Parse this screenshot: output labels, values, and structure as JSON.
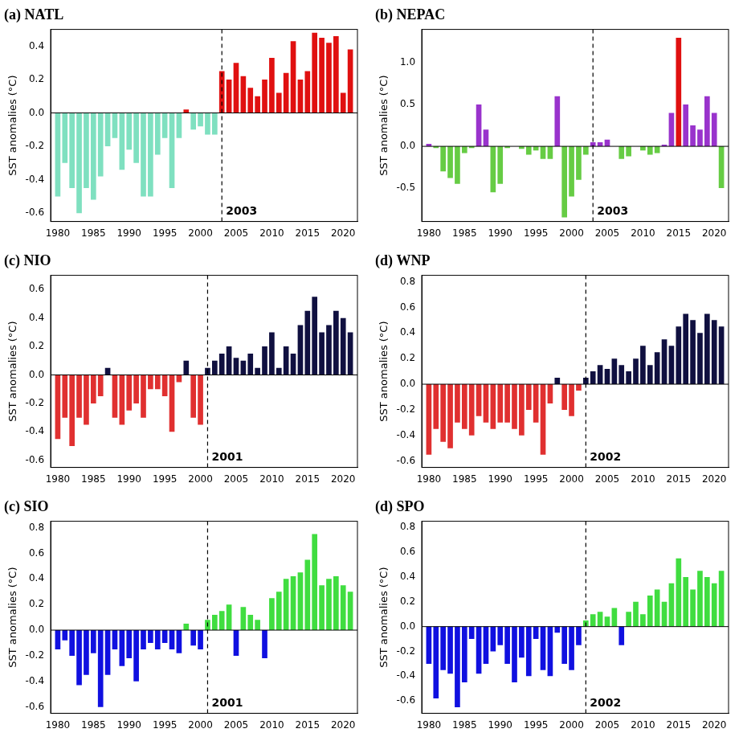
{
  "chart_data": [
    {
      "type": "bar",
      "title": "(a) NATL",
      "y_label": "SST anomalies (°C)",
      "x": [
        1980,
        1981,
        1982,
        1983,
        1984,
        1985,
        1986,
        1987,
        1988,
        1989,
        1990,
        1991,
        1992,
        1993,
        1994,
        1995,
        1996,
        1997,
        1998,
        1999,
        2000,
        2001,
        2002,
        2003,
        2004,
        2005,
        2006,
        2007,
        2008,
        2009,
        2010,
        2011,
        2012,
        2013,
        2014,
        2015,
        2016,
        2017,
        2018,
        2019,
        2020,
        2021
      ],
      "values": [
        -0.5,
        -0.3,
        -0.45,
        -0.6,
        -0.45,
        -0.52,
        -0.38,
        -0.2,
        -0.15,
        -0.34,
        -0.22,
        -0.3,
        -0.5,
        -0.5,
        -0.25,
        -0.15,
        -0.45,
        -0.15,
        0.02,
        -0.1,
        -0.08,
        -0.13,
        -0.13,
        0.25,
        0.2,
        0.3,
        0.22,
        0.15,
        0.1,
        0.2,
        0.33,
        0.12,
        0.24,
        0.43,
        0.2,
        0.25,
        0.48,
        0.45,
        0.42,
        0.46,
        0.12,
        0.38
      ],
      "colors": [
        "#7fe0c0",
        "#7fe0c0",
        "#7fe0c0",
        "#7fe0c0",
        "#7fe0c0",
        "#7fe0c0",
        "#7fe0c0",
        "#7fe0c0",
        "#7fe0c0",
        "#7fe0c0",
        "#7fe0c0",
        "#7fe0c0",
        "#7fe0c0",
        "#7fe0c0",
        "#7fe0c0",
        "#7fe0c0",
        "#7fe0c0",
        "#7fe0c0",
        "#e01010",
        "#7fe0c0",
        "#7fe0c0",
        "#7fe0c0",
        "#7fe0c0",
        "#e01010",
        "#e01010",
        "#e01010",
        "#e01010",
        "#e01010",
        "#e01010",
        "#e01010",
        "#e01010",
        "#e01010",
        "#e01010",
        "#e01010",
        "#e01010",
        "#e01010",
        "#e01010",
        "#e01010",
        "#e01010",
        "#e01010",
        "#e01010",
        "#e01010"
      ],
      "xlim": [
        1979,
        2022
      ],
      "xticks": [
        1980,
        1985,
        1990,
        1995,
        2000,
        2005,
        2010,
        2015,
        2020
      ],
      "ylim": [
        -0.65,
        0.5
      ],
      "yticks": [
        -0.6,
        -0.4,
        -0.2,
        {
          "value": 0,
          "label": "0.0"
        },
        0.2,
        0.4
      ],
      "annotations": [
        {
          "x": 2003,
          "text": "2003"
        }
      ],
      "grid": false
    },
    {
      "type": "bar",
      "title": "(b) NEPAC",
      "y_label": "SST anomalies (°C)",
      "x": [
        1980,
        1981,
        1982,
        1983,
        1984,
        1985,
        1986,
        1987,
        1988,
        1989,
        1990,
        1991,
        1992,
        1993,
        1994,
        1995,
        1996,
        1997,
        1998,
        1999,
        2000,
        2001,
        2002,
        2003,
        2004,
        2005,
        2006,
        2007,
        2008,
        2009,
        2010,
        2011,
        2012,
        2013,
        2014,
        2015,
        2016,
        2017,
        2018,
        2019,
        2020,
        2021
      ],
      "values": [
        0.03,
        -0.02,
        -0.3,
        -0.38,
        -0.45,
        -0.08,
        -0.02,
        0.5,
        0.2,
        -0.55,
        -0.45,
        -0.02,
        0.0,
        -0.03,
        -0.1,
        -0.05,
        -0.15,
        -0.15,
        0.6,
        -0.85,
        -0.6,
        -0.4,
        -0.1,
        0.05,
        0.05,
        0.08,
        0.0,
        -0.15,
        -0.12,
        0.0,
        -0.05,
        -0.1,
        -0.08,
        0.02,
        0.4,
        1.3,
        0.5,
        0.25,
        0.2,
        0.6,
        0.4,
        -0.5
      ],
      "colors": [
        "#9933cc",
        "#66cc44",
        "#66cc44",
        "#66cc44",
        "#66cc44",
        "#66cc44",
        "#66cc44",
        "#9933cc",
        "#9933cc",
        "#66cc44",
        "#66cc44",
        "#66cc44",
        "#66cc44",
        "#66cc44",
        "#66cc44",
        "#66cc44",
        "#66cc44",
        "#66cc44",
        "#9933cc",
        "#66cc44",
        "#66cc44",
        "#66cc44",
        "#66cc44",
        "#9933cc",
        "#9933cc",
        "#9933cc",
        "#66cc44",
        "#66cc44",
        "#66cc44",
        "#66cc44",
        "#66cc44",
        "#66cc44",
        "#66cc44",
        "#9933cc",
        "#9933cc",
        "#e01010",
        "#9933cc",
        "#9933cc",
        "#9933cc",
        "#9933cc",
        "#9933cc",
        "#66cc44"
      ],
      "xlim": [
        1979,
        2022
      ],
      "xticks": [
        1980,
        1985,
        1990,
        1995,
        2000,
        2005,
        2010,
        2015,
        2020
      ],
      "ylim": [
        -0.9,
        1.4
      ],
      "yticks": [
        -0.5,
        {
          "value": 0,
          "label": "0.0"
        },
        0.5,
        {
          "value": 1,
          "label": "1.0"
        }
      ],
      "annotations": [
        {
          "x": 2003,
          "text": "2003"
        }
      ],
      "grid": false
    },
    {
      "type": "bar",
      "title": "(c) NIO",
      "y_label": "SST anomalies (°C)",
      "x": [
        1980,
        1981,
        1982,
        1983,
        1984,
        1985,
        1986,
        1987,
        1988,
        1989,
        1990,
        1991,
        1992,
        1993,
        1994,
        1995,
        1996,
        1997,
        1998,
        1999,
        2000,
        2001,
        2002,
        2003,
        2004,
        2005,
        2006,
        2007,
        2008,
        2009,
        2010,
        2011,
        2012,
        2013,
        2014,
        2015,
        2016,
        2017,
        2018,
        2019,
        2020,
        2021
      ],
      "values": [
        -0.45,
        -0.3,
        -0.5,
        -0.3,
        -0.35,
        -0.2,
        -0.15,
        0.05,
        -0.3,
        -0.35,
        -0.25,
        -0.2,
        -0.3,
        -0.1,
        -0.1,
        -0.15,
        -0.4,
        -0.05,
        0.1,
        -0.3,
        -0.35,
        0.05,
        0.1,
        0.15,
        0.2,
        0.12,
        0.1,
        0.15,
        0.05,
        0.2,
        0.3,
        0.05,
        0.2,
        0.15,
        0.35,
        0.45,
        0.55,
        0.3,
        0.35,
        0.45,
        0.4,
        0.3
      ],
      "colors": [
        "#e03030",
        "#e03030",
        "#e03030",
        "#e03030",
        "#e03030",
        "#e03030",
        "#e03030",
        "#101040",
        "#e03030",
        "#e03030",
        "#e03030",
        "#e03030",
        "#e03030",
        "#e03030",
        "#e03030",
        "#e03030",
        "#e03030",
        "#e03030",
        "#101040",
        "#e03030",
        "#e03030",
        "#101040",
        "#101040",
        "#101040",
        "#101040",
        "#101040",
        "#101040",
        "#101040",
        "#101040",
        "#101040",
        "#101040",
        "#101040",
        "#101040",
        "#101040",
        "#101040",
        "#101040",
        "#101040",
        "#101040",
        "#101040",
        "#101040",
        "#101040",
        "#101040"
      ],
      "xlim": [
        1979,
        2022
      ],
      "xticks": [
        1980,
        1985,
        1990,
        1995,
        2000,
        2005,
        2010,
        2015,
        2020
      ],
      "ylim": [
        -0.65,
        0.7
      ],
      "yticks": [
        -0.6,
        -0.4,
        -0.2,
        {
          "value": 0,
          "label": "0.0"
        },
        0.2,
        0.4,
        0.6
      ],
      "annotations": [
        {
          "x": 2001,
          "text": "2001"
        }
      ],
      "grid": false
    },
    {
      "type": "bar",
      "title": "(d) WNP",
      "y_label": "SST anomalies (°C)",
      "x": [
        1980,
        1981,
        1982,
        1983,
        1984,
        1985,
        1986,
        1987,
        1988,
        1989,
        1990,
        1991,
        1992,
        1993,
        1994,
        1995,
        1996,
        1997,
        1998,
        1999,
        2000,
        2001,
        2002,
        2003,
        2004,
        2005,
        2006,
        2007,
        2008,
        2009,
        2010,
        2011,
        2012,
        2013,
        2014,
        2015,
        2016,
        2017,
        2018,
        2019,
        2020,
        2021
      ],
      "values": [
        -0.55,
        -0.35,
        -0.45,
        -0.5,
        -0.3,
        -0.35,
        -0.4,
        -0.25,
        -0.3,
        -0.35,
        -0.3,
        -0.3,
        -0.35,
        -0.4,
        -0.2,
        -0.3,
        -0.55,
        -0.15,
        0.05,
        -0.2,
        -0.25,
        -0.05,
        0.05,
        0.1,
        0.15,
        0.12,
        0.2,
        0.15,
        0.1,
        0.2,
        0.3,
        0.15,
        0.25,
        0.35,
        0.3,
        0.45,
        0.55,
        0.5,
        0.4,
        0.55,
        0.5,
        0.45
      ],
      "colors": [
        "#e03030",
        "#e03030",
        "#e03030",
        "#e03030",
        "#e03030",
        "#e03030",
        "#e03030",
        "#e03030",
        "#e03030",
        "#e03030",
        "#e03030",
        "#e03030",
        "#e03030",
        "#e03030",
        "#e03030",
        "#e03030",
        "#e03030",
        "#e03030",
        "#101040",
        "#e03030",
        "#e03030",
        "#e03030",
        "#101040",
        "#101040",
        "#101040",
        "#101040",
        "#101040",
        "#101040",
        "#101040",
        "#101040",
        "#101040",
        "#101040",
        "#101040",
        "#101040",
        "#101040",
        "#101040",
        "#101040",
        "#101040",
        "#101040",
        "#101040",
        "#101040",
        "#101040"
      ],
      "xlim": [
        1979,
        2022
      ],
      "xticks": [
        1980,
        1985,
        1990,
        1995,
        2000,
        2005,
        2010,
        2015,
        2020
      ],
      "ylim": [
        -0.65,
        0.85
      ],
      "yticks": [
        -0.6,
        -0.4,
        -0.2,
        {
          "value": 0,
          "label": "0.0"
        },
        0.2,
        0.4,
        0.6,
        0.8
      ],
      "annotations": [
        {
          "x": 2002,
          "text": "2002"
        }
      ],
      "grid": false
    },
    {
      "type": "bar",
      "title": "(c) SIO",
      "y_label": "SST anomalies (°C)",
      "x": [
        1980,
        1981,
        1982,
        1983,
        1984,
        1985,
        1986,
        1987,
        1988,
        1989,
        1990,
        1991,
        1992,
        1993,
        1994,
        1995,
        1996,
        1997,
        1998,
        1999,
        2000,
        2001,
        2002,
        2003,
        2004,
        2005,
        2006,
        2007,
        2008,
        2009,
        2010,
        2011,
        2012,
        2013,
        2014,
        2015,
        2016,
        2017,
        2018,
        2019,
        2020,
        2021
      ],
      "values": [
        -0.15,
        -0.08,
        -0.2,
        -0.43,
        -0.35,
        -0.18,
        -0.6,
        -0.35,
        -0.15,
        -0.28,
        -0.22,
        -0.4,
        -0.15,
        -0.1,
        -0.15,
        -0.1,
        -0.15,
        -0.18,
        0.05,
        -0.12,
        -0.15,
        0.08,
        0.12,
        0.15,
        0.2,
        -0.2,
        0.18,
        0.12,
        0.08,
        -0.22,
        0.25,
        0.3,
        0.4,
        0.42,
        0.45,
        0.55,
        0.75,
        0.35,
        0.4,
        0.42,
        0.35,
        0.3
      ],
      "colors": [
        "#1010e0",
        "#1010e0",
        "#1010e0",
        "#1010e0",
        "#1010e0",
        "#1010e0",
        "#1010e0",
        "#1010e0",
        "#1010e0",
        "#1010e0",
        "#1010e0",
        "#1010e0",
        "#1010e0",
        "#1010e0",
        "#1010e0",
        "#1010e0",
        "#1010e0",
        "#1010e0",
        "#40dd40",
        "#1010e0",
        "#1010e0",
        "#40dd40",
        "#40dd40",
        "#40dd40",
        "#40dd40",
        "#1010e0",
        "#40dd40",
        "#40dd40",
        "#40dd40",
        "#1010e0",
        "#40dd40",
        "#40dd40",
        "#40dd40",
        "#40dd40",
        "#40dd40",
        "#40dd40",
        "#40dd40",
        "#40dd40",
        "#40dd40",
        "#40dd40",
        "#40dd40",
        "#40dd40"
      ],
      "xlim": [
        1979,
        2022
      ],
      "xticks": [
        1980,
        1985,
        1990,
        1995,
        2000,
        2005,
        2010,
        2015,
        2020
      ],
      "ylim": [
        -0.65,
        0.85
      ],
      "yticks": [
        -0.6,
        -0.4,
        -0.2,
        {
          "value": 0,
          "label": "0.0"
        },
        0.2,
        0.4,
        0.6,
        0.8
      ],
      "annotations": [
        {
          "x": 2001,
          "text": "2001"
        }
      ],
      "grid": false
    },
    {
      "type": "bar",
      "title": "(d) SPO",
      "y_label": "SST anomalies (°C)",
      "x": [
        1980,
        1981,
        1982,
        1983,
        1984,
        1985,
        1986,
        1987,
        1988,
        1989,
        1990,
        1991,
        1992,
        1993,
        1994,
        1995,
        1996,
        1997,
        1998,
        1999,
        2000,
        2001,
        2002,
        2003,
        2004,
        2005,
        2006,
        2007,
        2008,
        2009,
        2010,
        2011,
        2012,
        2013,
        2014,
        2015,
        2016,
        2017,
        2018,
        2019,
        2020,
        2021
      ],
      "values": [
        -0.3,
        -0.58,
        -0.35,
        -0.38,
        -0.65,
        -0.45,
        -0.1,
        -0.38,
        -0.3,
        -0.2,
        -0.15,
        -0.3,
        -0.45,
        -0.25,
        -0.4,
        -0.1,
        -0.35,
        -0.4,
        -0.05,
        -0.3,
        -0.35,
        -0.15,
        0.05,
        0.1,
        0.12,
        0.08,
        0.15,
        -0.15,
        0.12,
        0.2,
        0.1,
        0.25,
        0.3,
        0.2,
        0.35,
        0.55,
        0.4,
        0.3,
        0.45,
        0.4,
        0.35,
        0.45
      ],
      "colors": [
        "#1010e0",
        "#1010e0",
        "#1010e0",
        "#1010e0",
        "#1010e0",
        "#1010e0",
        "#1010e0",
        "#1010e0",
        "#1010e0",
        "#1010e0",
        "#1010e0",
        "#1010e0",
        "#1010e0",
        "#1010e0",
        "#1010e0",
        "#1010e0",
        "#1010e0",
        "#1010e0",
        "#1010e0",
        "#1010e0",
        "#1010e0",
        "#1010e0",
        "#40dd40",
        "#40dd40",
        "#40dd40",
        "#40dd40",
        "#40dd40",
        "#1010e0",
        "#40dd40",
        "#40dd40",
        "#40dd40",
        "#40dd40",
        "#40dd40",
        "#40dd40",
        "#40dd40",
        "#40dd40",
        "#40dd40",
        "#40dd40",
        "#40dd40",
        "#40dd40",
        "#40dd40",
        "#40dd40"
      ],
      "xlim": [
        1979,
        2022
      ],
      "xticks": [
        1980,
        1985,
        1990,
        1995,
        2000,
        2005,
        2010,
        2015,
        2020
      ],
      "ylim": [
        -0.7,
        0.85
      ],
      "yticks": [
        -0.6,
        -0.4,
        -0.2,
        {
          "value": 0,
          "label": "0.0"
        },
        0.2,
        0.4,
        0.6,
        0.8
      ],
      "annotations": [
        {
          "x": 2002,
          "text": "2002"
        }
      ],
      "grid": false
    }
  ]
}
